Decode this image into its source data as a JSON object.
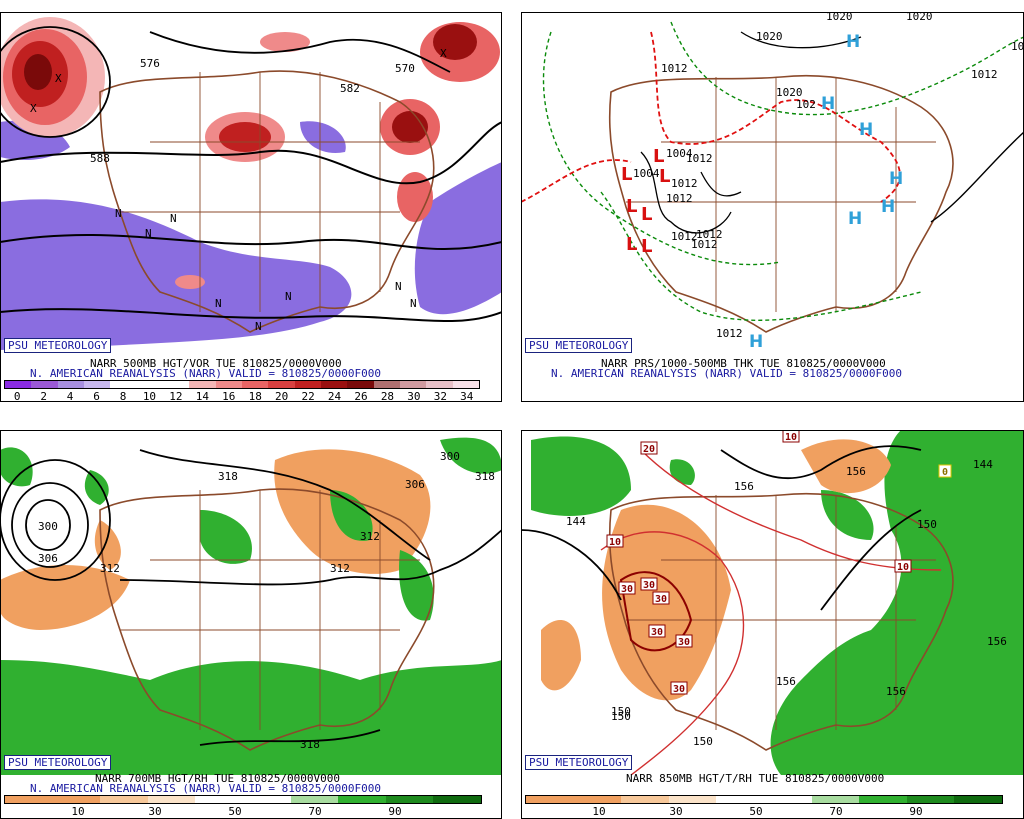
{
  "panels": [
    {
      "badge": "PSU METEOROLOGY",
      "caption_line1": "NARR 500MB HGT/VOR TUE 810825/0000V000",
      "caption_line2": "N. AMERICAN REANALYSIS (NARR) VALID = 810825/0000F000",
      "colorbar_ticks": [
        "0",
        "2",
        "4",
        "6",
        "8",
        "10",
        "12",
        "14",
        "16",
        "18",
        "20",
        "22",
        "24",
        "26",
        "28",
        "30",
        "32",
        "34"
      ],
      "colorbar_colors": [
        "#8a2be2",
        "#9b59d6",
        "#a890e0",
        "#c8b8ef",
        "#ffffff",
        "#ffffff",
        "#ffffff",
        "#f4b6b6",
        "#ef8a8a",
        "#e86464",
        "#d84040",
        "#c02020",
        "#9a1010",
        "#7a0a0a",
        "#b07070",
        "#d09aa0",
        "#e8c0c8",
        "#f8e0e8"
      ],
      "contour_labels": [
        "570",
        "582",
        "588",
        "576"
      ],
      "vort_labels": [
        "N",
        "N",
        "N",
        "N",
        "N",
        "N",
        "N",
        "N",
        "X",
        "X",
        "X"
      ]
    },
    {
      "badge": "PSU METEOROLOGY",
      "caption_line1": "NARR PRS/1000-500MB THK TUE 810825/0000V000",
      "caption_line2": "N. AMERICAN REANALYSIS (NARR) VALID = 810825/0000F000",
      "isobar_labels": [
        "1020",
        "1020",
        "1020",
        "1012",
        "1020",
        "1012",
        "1004",
        "1012",
        "1012",
        "1004",
        "1012",
        "1012",
        "1012",
        "1012",
        "1012",
        "102",
        "10"
      ],
      "high_symbol": "H",
      "low_symbol": "L"
    },
    {
      "badge": "PSU METEOROLOGY",
      "caption_line1": "NARR 700MB HGT/RH TUE 810825/0000V000",
      "caption_line2": "N. AMERICAN REANALYSIS (NARR) VALID = 810825/0000F000",
      "colorbar_ticks": [
        "10",
        "30",
        "50",
        "70",
        "90"
      ],
      "contour_labels": [
        "318",
        "300",
        "306",
        "312",
        "306",
        "312",
        "312",
        "318",
        "300",
        "318"
      ]
    },
    {
      "badge": "PSU METEOROLOGY",
      "caption_line1": "NARR 850MB HGT/T/RH TUE 810825/0000V000",
      "caption_line2": "",
      "colorbar_ticks": [
        "10",
        "30",
        "50",
        "70",
        "90"
      ],
      "contour_labels": [
        "156",
        "144",
        "156",
        "150",
        "150",
        "156",
        "156",
        "156",
        "150",
        "150",
        "144"
      ],
      "temp_labels": [
        "10",
        "20",
        "10",
        "30",
        "30",
        "30",
        "30",
        "30",
        "30",
        "10",
        "0"
      ]
    }
  ],
  "colors": {
    "rh_dry": "#f0a060",
    "rh_moist": "#30b030",
    "vort_pos": "#d03030",
    "vort_neg": "#8a6de0",
    "geography": "#8b4a2b",
    "contour": "#000000",
    "thickness": "#0a8a0a",
    "thickness_warm": "#e01010",
    "high": "#2fa0d8",
    "low": "#d81010"
  }
}
